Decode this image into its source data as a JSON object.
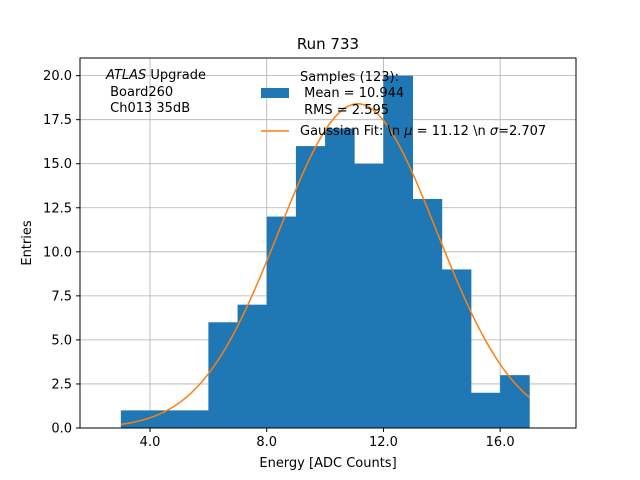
{
  "chart_data": {
    "type": "bar",
    "title": "Run 733",
    "xlabel": "Energy [ADC Counts]",
    "ylabel": "Entries",
    "xlim": [
      1.6,
      18.6
    ],
    "ylim": [
      0,
      21.0
    ],
    "xticks": [
      4.0,
      8.0,
      12.0,
      16.0
    ],
    "xtick_labels": [
      "4.0",
      "8.0",
      "12.0",
      "16.0"
    ],
    "yticks": [
      0,
      2.5,
      5,
      7.5,
      10,
      12.5,
      15,
      17.5,
      20
    ],
    "ytick_labels": [
      "0.0",
      "2.5",
      "5.0",
      "7.5",
      "10.0",
      "12.5",
      "15.0",
      "17.5",
      "20.0"
    ],
    "grid": true,
    "bins": {
      "edges": [
        3,
        4,
        5,
        6,
        7,
        8,
        9,
        10,
        11,
        12,
        13,
        14,
        15,
        16,
        17
      ],
      "counts": [
        1,
        1,
        1,
        6,
        7,
        12,
        16,
        17,
        15,
        20,
        13,
        9,
        2,
        3
      ]
    },
    "histogram_color": "#1f77b4",
    "fit": {
      "amplitude": 18.4,
      "mu": 11.12,
      "sigma": 2.707,
      "x_range": [
        3,
        17
      ],
      "color": "#ff7f0e"
    },
    "annotation": {
      "italic": "ATLAS",
      "line1_rest": " Upgrade",
      "line2": " Board260",
      "line3": " Ch013 35dB"
    },
    "legend": {
      "location": "top-center",
      "hist_lines": [
        "Samples (123):",
        " Mean = 10.944",
        " RMS = 2.595"
      ],
      "fit_prefix": "Gaussian Fit: \\n ",
      "fit_mu_symbol": "μ",
      "fit_mid": " = 11.12 \\n ",
      "fit_sigma_symbol": "σ",
      "fit_suffix": "=2.707"
    }
  }
}
